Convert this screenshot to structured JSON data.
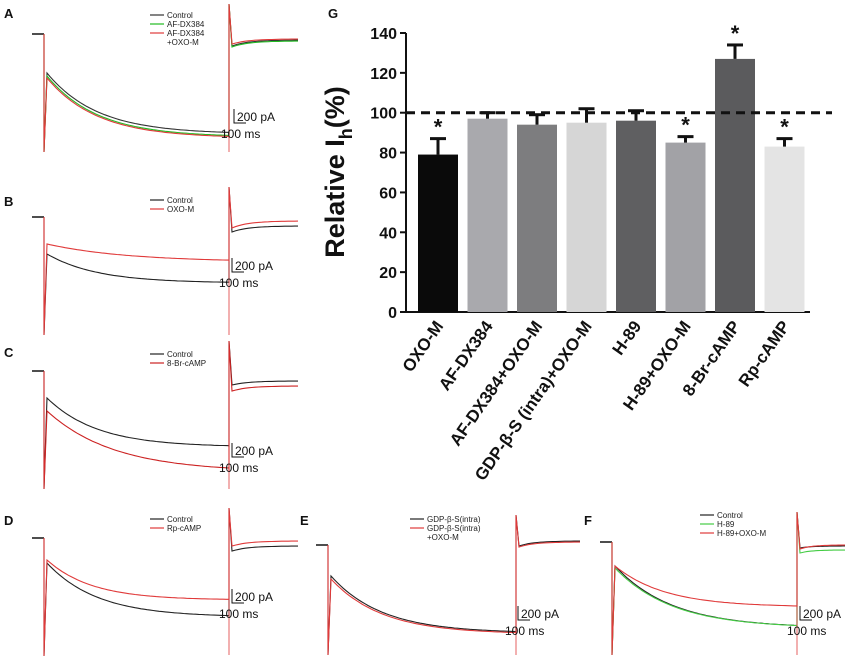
{
  "figure": {
    "bar_chart_panel_label": "G",
    "trace_panels": [
      {
        "id": "A",
        "legend": [
          "Control",
          "AF-DX384",
          "AF-DX384\n+OXO-M"
        ],
        "colors": [
          "#333333",
          "#22bb22",
          "#e03a3a"
        ],
        "scale_current": "200 pA",
        "scale_time": "100 ms"
      },
      {
        "id": "B",
        "legend": [
          "Control",
          "OXO-M"
        ],
        "colors": [
          "#222222",
          "#e03a3a"
        ],
        "scale_current": "200 pA",
        "scale_time": "100 ms"
      },
      {
        "id": "C",
        "legend": [
          "Control",
          "8-Br-cAMP"
        ],
        "colors": [
          "#222222",
          "#cc2222"
        ],
        "scale_current": "200 pA",
        "scale_time": "100 ms"
      },
      {
        "id": "D",
        "legend": [
          "Control",
          "Rp-cAMP"
        ],
        "colors": [
          "#222222",
          "#e03a3a"
        ],
        "scale_current": "200 pA",
        "scale_time": "100 ms"
      },
      {
        "id": "E",
        "legend": [
          "GDP-β-S(intra)",
          "GDP-β-S(intra)\n+OXO-M"
        ],
        "colors": [
          "#222222",
          "#e03a3a"
        ],
        "scale_current": "200 pA",
        "scale_time": "100 ms"
      },
      {
        "id": "F",
        "legend": [
          "Control",
          "H-89",
          "H-89+OXO-M"
        ],
        "colors": [
          "#222222",
          "#44cc44",
          "#e03a3a"
        ],
        "scale_current": "200 pA",
        "scale_time": "100 ms"
      }
    ]
  },
  "chart_data": {
    "type": "bar",
    "title": "",
    "ylabel_main": "Relative I",
    "ylabel_sub": "h",
    "ylabel_tail": "(%)",
    "xlabel": "",
    "ylim": [
      0,
      140
    ],
    "yticks": [
      "0",
      "20",
      "40",
      "60",
      "80",
      "100",
      "120",
      "140"
    ],
    "categories": [
      "OXO-M",
      "AF-DX384",
      "AF-DX384+OXO-M",
      "GDP-β-S (intra)+OXO-M",
      "H-89",
      "H-89+OXO-M",
      "8-Br-cAMP",
      "Rp-cAMP"
    ],
    "values": [
      79,
      97,
      94,
      95,
      96,
      85,
      127,
      83
    ],
    "errors": [
      8,
      3,
      5,
      7,
      5,
      3,
      7,
      4
    ],
    "significant": [
      true,
      false,
      false,
      false,
      false,
      true,
      true,
      true
    ],
    "significance_marker": "*",
    "bar_colors": [
      "#0a0a0a",
      "#a9a9ad",
      "#7d7d7f",
      "#d6d6d6",
      "#5f5f61",
      "#a2a2a6",
      "#5b5b5d",
      "#e4e4e4"
    ],
    "reference_line": 100
  }
}
